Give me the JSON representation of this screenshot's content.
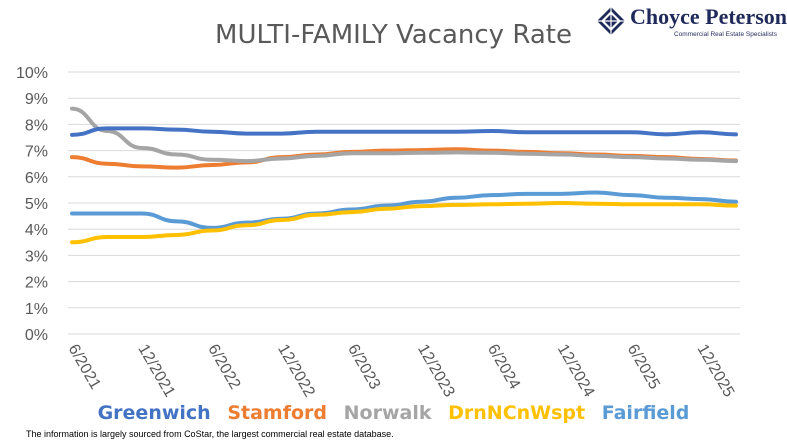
{
  "colors": {
    "greenwich": "#4472c4",
    "stamford": "#ed7d31",
    "norwalk": "#a5a5a5",
    "drnncnwspt": "#ffc000",
    "fairfield": "#5b9bd5",
    "grid": "#d9d9d9",
    "axis_text": "#595959",
    "logo": "#1f2a5a"
  },
  "logo": {
    "name": "Choyce Peterson",
    "tagline": "Commercial Real Estate Specialists",
    "icon": "diamond-logo-icon"
  },
  "chart_data": {
    "type": "line",
    "title": "MULTI-FAMILY Vacancy Rate",
    "xlabel": "",
    "ylabel": "",
    "ylim": [
      0,
      10
    ],
    "y_ticks": [
      "0%",
      "1%",
      "2%",
      "3%",
      "4%",
      "5%",
      "6%",
      "7%",
      "8%",
      "9%",
      "10%"
    ],
    "x_tick_labels": [
      "6/2021",
      "12/2021",
      "6/2022",
      "12/2022",
      "6/2023",
      "12/2023",
      "6/2024",
      "12/2024",
      "6/2025",
      "12/2025"
    ],
    "x": [
      "6/2021",
      "9/2021",
      "12/2021",
      "3/2022",
      "6/2022",
      "9/2022",
      "12/2022",
      "3/2023",
      "6/2023",
      "9/2023",
      "12/2023",
      "3/2024",
      "6/2024",
      "9/2024",
      "12/2024",
      "3/2025",
      "6/2025",
      "9/2025",
      "12/2025",
      "2/2026"
    ],
    "grid": true,
    "legend_position": "bottom",
    "series": [
      {
        "name": "Greenwich",
        "color_key": "greenwich",
        "values": [
          7.6,
          7.85,
          7.85,
          7.8,
          7.72,
          7.65,
          7.65,
          7.72,
          7.72,
          7.72,
          7.72,
          7.72,
          7.75,
          7.7,
          7.7,
          7.7,
          7.7,
          7.62,
          7.7,
          7.62
        ]
      },
      {
        "name": "Stamford",
        "color_key": "stamford",
        "values": [
          6.75,
          6.5,
          6.4,
          6.35,
          6.45,
          6.55,
          6.75,
          6.85,
          6.95,
          7.0,
          7.02,
          7.05,
          7.0,
          6.95,
          6.9,
          6.85,
          6.8,
          6.75,
          6.68,
          6.62
        ]
      },
      {
        "name": "Norwalk",
        "color_key": "norwalk",
        "values": [
          8.6,
          7.75,
          7.1,
          6.85,
          6.65,
          6.6,
          6.7,
          6.8,
          6.9,
          6.9,
          6.92,
          6.93,
          6.92,
          6.88,
          6.85,
          6.8,
          6.75,
          6.7,
          6.65,
          6.6
        ]
      },
      {
        "name": "DrnNCnWspt",
        "color_key": "drnncnwspt",
        "values": [
          3.5,
          3.7,
          3.7,
          3.78,
          3.95,
          4.15,
          4.35,
          4.55,
          4.65,
          4.78,
          4.88,
          4.93,
          4.95,
          4.97,
          5.0,
          4.97,
          4.95,
          4.95,
          4.95,
          4.9
        ]
      },
      {
        "name": "Fairfield",
        "color_key": "fairfield",
        "values": [
          4.6,
          4.6,
          4.6,
          4.3,
          4.05,
          4.25,
          4.4,
          4.6,
          4.75,
          4.9,
          5.05,
          5.2,
          5.3,
          5.35,
          5.35,
          5.4,
          5.3,
          5.2,
          5.15,
          5.05
        ]
      }
    ]
  },
  "footnote": "The information is largely sourced from CoStar, the largest commercial real estate database."
}
